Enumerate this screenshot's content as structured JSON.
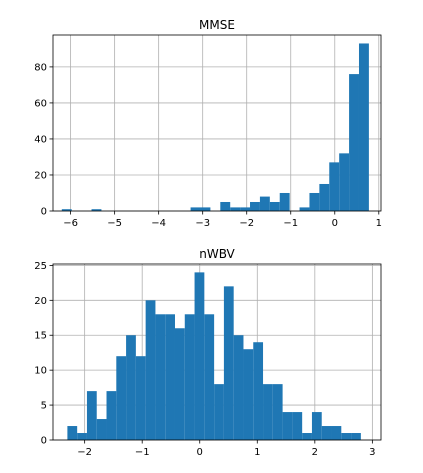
{
  "chart_data": [
    {
      "type": "bar",
      "title": "MMSE",
      "xlabel": "",
      "ylabel": "",
      "xlim": [
        -6.4,
        1.05
      ],
      "ylim": [
        0,
        97.7
      ],
      "grid": true,
      "color": "#1f77b4",
      "xticks": [
        -6,
        -5,
        -4,
        -3,
        -2,
        -1,
        0,
        1
      ],
      "xtick_labels": [
        "−6",
        "−5",
        "−4",
        "−3",
        "−2",
        "−1",
        "0",
        "1"
      ],
      "yticks": [
        0,
        20,
        40,
        60,
        80
      ],
      "ytick_labels": [
        "0",
        "20",
        "40",
        "60",
        "80"
      ],
      "bin_start": -6.2,
      "bin_width": 0.225,
      "values": [
        1,
        0,
        0,
        1,
        0,
        0,
        0,
        0,
        0,
        0,
        0,
        0,
        0,
        2,
        2,
        0,
        5,
        2,
        2,
        5,
        8,
        5,
        10,
        0,
        2,
        10,
        15,
        27,
        32,
        76,
        93
      ]
    },
    {
      "type": "bar",
      "title": "nWBV",
      "xlabel": "",
      "ylabel": "",
      "xlim": [
        -2.55,
        3.15
      ],
      "ylim": [
        0,
        25.2
      ],
      "grid": true,
      "color": "#1f77b4",
      "xticks": [
        -2,
        -1,
        0,
        1,
        2,
        3
      ],
      "xtick_labels": [
        "−2",
        "−1",
        "0",
        "1",
        "2",
        "3"
      ],
      "yticks": [
        0,
        5,
        10,
        15,
        20,
        25
      ],
      "ytick_labels": [
        "0",
        "5",
        "10",
        "15",
        "20",
        "25"
      ],
      "bin_start": -2.3,
      "bin_width": 0.17,
      "values": [
        2,
        1,
        7,
        3,
        7,
        12,
        15,
        12,
        20,
        18,
        18,
        16,
        18,
        24,
        18,
        8,
        22,
        15,
        13,
        14,
        8,
        8,
        4,
        4,
        1,
        4,
        2,
        2,
        1,
        1
      ]
    }
  ]
}
